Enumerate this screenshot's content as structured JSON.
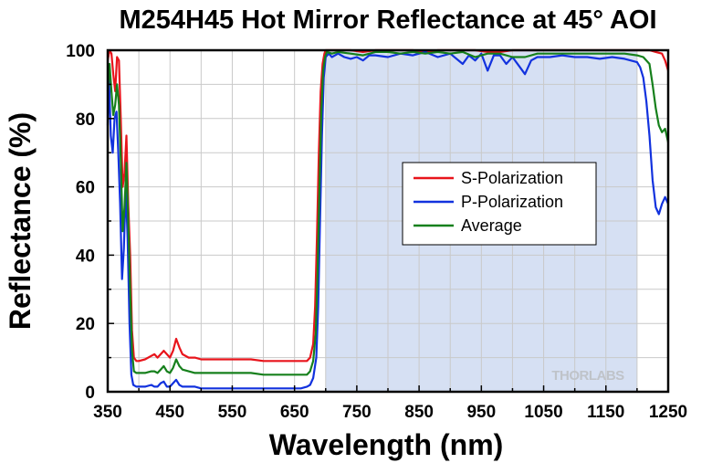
{
  "chart_data": {
    "type": "line",
    "title": "M254H45 Hot Mirror Reflectance at 45° AOI",
    "xlabel": "Wavelength (nm)",
    "ylabel": "Reflectance (%)",
    "xlim": [
      350,
      1250
    ],
    "ylim": [
      0,
      100
    ],
    "xticks": [
      350,
      450,
      550,
      650,
      750,
      850,
      950,
      1050,
      1150,
      1250
    ],
    "yticks": [
      0,
      20,
      40,
      60,
      80,
      100
    ],
    "grid": true,
    "legend_position": "center-right",
    "shaded_band": {
      "x": [
        700,
        1200
      ],
      "color": "#d6e0f3"
    },
    "watermark": "THORLABS",
    "series": [
      {
        "name": "S-Polarization",
        "color": "#e8141b",
        "x": [
          350,
          353,
          356,
          359,
          362,
          365,
          368,
          371,
          374,
          377,
          380,
          383,
          386,
          389,
          392,
          396,
          400,
          410,
          420,
          425,
          430,
          435,
          440,
          445,
          450,
          455,
          460,
          465,
          470,
          480,
          490,
          500,
          520,
          540,
          560,
          580,
          600,
          620,
          640,
          660,
          670,
          675,
          680,
          683,
          686,
          689,
          692,
          695,
          698,
          700,
          710,
          720,
          740,
          760,
          780,
          800,
          820,
          840,
          860,
          880,
          900,
          920,
          940,
          960,
          980,
          1000,
          1020,
          1040,
          1060,
          1080,
          1100,
          1120,
          1140,
          1160,
          1180,
          1200,
          1210,
          1220,
          1230,
          1240,
          1245,
          1250
        ],
        "y": [
          97,
          100,
          99,
          93,
          88,
          98,
          97,
          80,
          60,
          64,
          75,
          55,
          40,
          18,
          10,
          9,
          9,
          9.5,
          10.5,
          11,
          10,
          11,
          12,
          11,
          10,
          12,
          15.5,
          13,
          11,
          10,
          10,
          9.5,
          9.5,
          9.5,
          9.5,
          9.5,
          9,
          9,
          9,
          9,
          9,
          10,
          14,
          25,
          45,
          70,
          88,
          96,
          99,
          100,
          100,
          100,
          100,
          99.5,
          100,
          100,
          100,
          100,
          99.5,
          100,
          100,
          100,
          100,
          99.5,
          99.5,
          100,
          100,
          100,
          100,
          100,
          100,
          100,
          100,
          100,
          100,
          100,
          100,
          100,
          99.5,
          99,
          97,
          94
        ]
      },
      {
        "name": "P-Polarization",
        "color": "#1232de",
        "x": [
          350,
          352,
          355,
          358,
          361,
          364,
          367,
          370,
          373,
          376,
          379,
          382,
          385,
          388,
          391,
          396,
          400,
          410,
          420,
          425,
          430,
          435,
          440,
          445,
          450,
          455,
          460,
          465,
          470,
          480,
          490,
          500,
          520,
          540,
          560,
          580,
          600,
          620,
          640,
          660,
          670,
          675,
          680,
          685,
          688,
          691,
          694,
          697,
          700,
          705,
          710,
          720,
          730,
          740,
          750,
          760,
          770,
          780,
          800,
          820,
          840,
          860,
          880,
          900,
          920,
          930,
          940,
          950,
          960,
          970,
          980,
          990,
          1000,
          1010,
          1020,
          1030,
          1040,
          1060,
          1080,
          1100,
          1120,
          1140,
          1160,
          1180,
          1200,
          1205,
          1210,
          1215,
          1220,
          1225,
          1230,
          1235,
          1240,
          1245,
          1250
        ],
        "y": [
          78,
          92,
          75,
          70,
          80,
          82,
          70,
          55,
          33,
          42,
          60,
          45,
          20,
          5,
          2,
          1.5,
          1.5,
          1.5,
          2,
          1.5,
          1.5,
          2.5,
          3,
          1.5,
          1.5,
          2.5,
          3.5,
          2,
          1.5,
          1.5,
          1.5,
          1,
          1,
          1,
          1,
          1,
          1,
          1,
          1,
          1,
          1.5,
          2,
          4,
          10,
          25,
          50,
          75,
          92,
          98,
          99,
          98,
          99,
          98,
          97.5,
          98,
          97,
          98.5,
          98.5,
          98,
          99,
          98.5,
          99.5,
          98,
          99,
          96,
          98.5,
          97,
          99,
          94,
          98.5,
          98.5,
          96,
          98,
          95.5,
          93,
          97,
          98,
          98,
          98.5,
          98,
          98,
          97.5,
          98,
          97.5,
          96.5,
          95,
          92,
          85,
          75,
          62,
          54,
          52,
          55,
          57,
          55
        ]
      },
      {
        "name": "Average",
        "color": "#16801c",
        "x": [
          350,
          353,
          356,
          359,
          362,
          365,
          368,
          371,
          374,
          377,
          380,
          383,
          386,
          389,
          392,
          396,
          400,
          410,
          420,
          425,
          430,
          435,
          440,
          445,
          450,
          455,
          460,
          465,
          470,
          480,
          490,
          500,
          520,
          540,
          560,
          580,
          600,
          620,
          640,
          660,
          670,
          675,
          680,
          684,
          687,
          690,
          693,
          696,
          699,
          702,
          710,
          720,
          740,
          760,
          780,
          800,
          820,
          840,
          860,
          880,
          900,
          920,
          940,
          960,
          980,
          1000,
          1020,
          1040,
          1060,
          1080,
          1100,
          1120,
          1140,
          1160,
          1180,
          1200,
          1210,
          1220,
          1225,
          1230,
          1235,
          1240,
          1245,
          1250
        ],
        "y": [
          88,
          96,
          88,
          81,
          84,
          90,
          84,
          68,
          47,
          54,
          67,
          50,
          30,
          12,
          6,
          5.5,
          5.5,
          5.5,
          6,
          6,
          5.5,
          6.5,
          7.5,
          6,
          5.5,
          7,
          9.5,
          7.5,
          6.5,
          6,
          5.5,
          5.5,
          5.5,
          5.5,
          5.5,
          5.5,
          5,
          5,
          5,
          5,
          5,
          6,
          9,
          17,
          35,
          60,
          82,
          94,
          98,
          99.5,
          99,
          99.5,
          99,
          98.5,
          99.5,
          99.5,
          99,
          99.5,
          99,
          99.5,
          99,
          99.5,
          98,
          99,
          99,
          98,
          98,
          99,
          99,
          99,
          99,
          99,
          99,
          99,
          99,
          98.5,
          98,
          96,
          90,
          83,
          78,
          76,
          77,
          73
        ]
      }
    ]
  }
}
